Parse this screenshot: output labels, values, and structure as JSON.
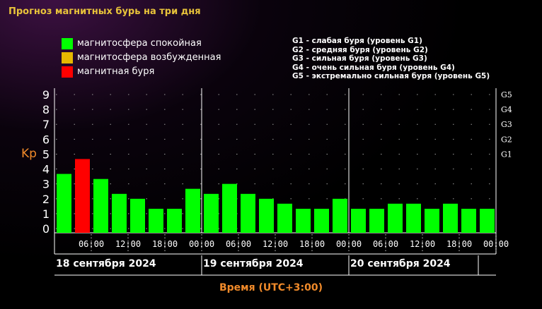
{
  "page": {
    "title": "Прогноз магнитных бурь на три дня"
  },
  "legend": {
    "items": [
      {
        "label": "магнитосфера спокойная",
        "color": "#00ff00"
      },
      {
        "label": "магнитосфера возбужденная",
        "color": "#e6b800"
      },
      {
        "label": "магнитная буря",
        "color": "#ff0000"
      }
    ],
    "g_scale": [
      "G1 - слабая буря (уровень G1)",
      "G2 - средняя буря (уровень G2)",
      "G3 - сильная буря (уровень G3)",
      "G4 - очень сильная буря (уровень G4)",
      "G5 - экстремально сильная буря (уровень G5)"
    ]
  },
  "chart_data": {
    "type": "bar",
    "ylabel": "Kp",
    "xlabel": "Время (UTC+3:00)",
    "ylim": [
      0,
      9
    ],
    "yticks": [
      "0",
      "1",
      "2",
      "3",
      "4",
      "5",
      "6",
      "7",
      "8",
      "9"
    ],
    "right_ticks": [
      {
        "label": "G1",
        "kp": 5
      },
      {
        "label": "G2",
        "kp": 6
      },
      {
        "label": "G3",
        "kp": 7
      },
      {
        "label": "G4",
        "kp": 8
      },
      {
        "label": "G5",
        "kp": 9
      }
    ],
    "grid": true,
    "days": [
      "18 сентября 2024",
      "19 сентября 2024",
      "20 сентября 2024"
    ],
    "time_ticks": [
      "06:00",
      "12:00",
      "18:00",
      "00:00",
      "06:00",
      "12:00",
      "18:00",
      "00:00",
      "06:00",
      "12:00",
      "18:00",
      "00:00"
    ],
    "values": [
      3.67,
      4.67,
      3.33,
      2.33,
      2.0,
      1.33,
      1.33,
      2.67,
      2.33,
      3.0,
      2.33,
      2.0,
      1.67,
      1.33,
      1.33,
      2.0,
      1.33,
      1.33,
      1.67,
      1.67,
      1.33,
      1.67,
      1.33,
      1.33
    ],
    "levels": [
      "calm",
      "storm",
      "calm",
      "calm",
      "calm",
      "calm",
      "calm",
      "calm",
      "calm",
      "calm",
      "calm",
      "calm",
      "calm",
      "calm",
      "calm",
      "calm",
      "calm",
      "calm",
      "calm",
      "calm",
      "calm",
      "calm",
      "calm",
      "calm"
    ],
    "level_colors": {
      "calm": "#00ff00",
      "active": "#e6b800",
      "storm": "#ff0000"
    }
  }
}
